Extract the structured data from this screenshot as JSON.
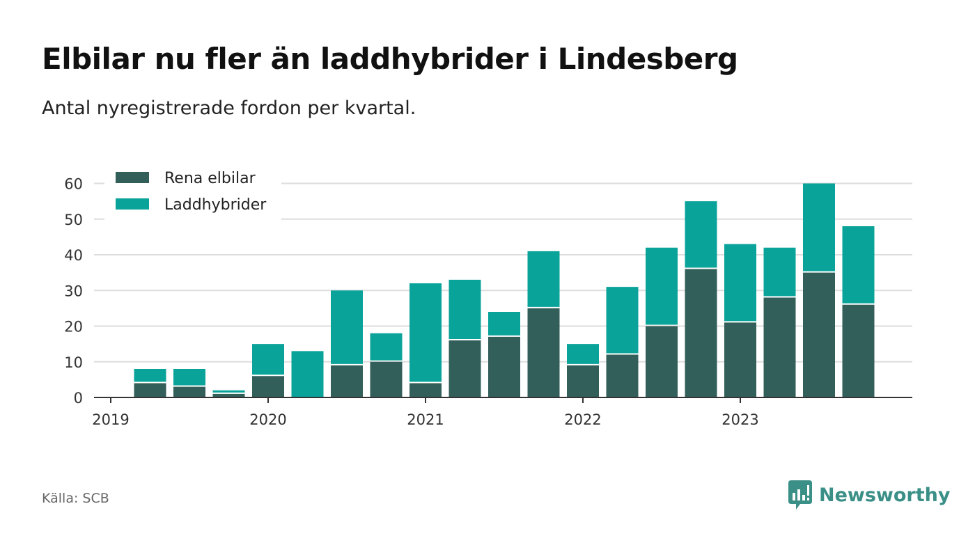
{
  "header": {
    "title": "Elbilar nu fler än laddhybrider i Lindesberg",
    "subtitle": "Antal nyregistrerade fordon per kvartal."
  },
  "footer": {
    "source": "Källa: SCB",
    "brand": "Newsworthy"
  },
  "colors": {
    "elbilar": "#335f5a",
    "laddhybrider": "#0aa39a",
    "grid": "#dddddd",
    "axis": "#333333",
    "brand": "#3a8f86"
  },
  "chart_data": {
    "type": "bar",
    "stacked": true,
    "title": "Elbilar nu fler än laddhybrider i Lindesberg",
    "subtitle": "Antal nyregistrerade fordon per kvartal.",
    "categories": [
      "2019-Q1",
      "2019-Q2",
      "2019-Q3",
      "2019-Q4",
      "2020-Q1",
      "2020-Q2",
      "2020-Q3",
      "2020-Q4",
      "2021-Q1",
      "2021-Q2",
      "2021-Q3",
      "2021-Q4",
      "2022-Q1",
      "2022-Q2",
      "2022-Q3",
      "2022-Q4",
      "2023-Q1",
      "2023-Q2",
      "2023-Q3",
      "2023-Q4"
    ],
    "series": [
      {
        "name": "Rena elbilar",
        "values": [
          0,
          4,
          3,
          1,
          6,
          0,
          9,
          10,
          4,
          16,
          17,
          25,
          9,
          12,
          20,
          36,
          21,
          28,
          35,
          26
        ]
      },
      {
        "name": "Laddhybrider",
        "values": [
          0,
          4,
          5,
          1,
          9,
          13,
          21,
          8,
          28,
          17,
          7,
          16,
          6,
          19,
          22,
          19,
          22,
          14,
          25,
          22
        ]
      }
    ],
    "xticks": [
      "2019",
      "2020",
      "2021",
      "2022",
      "2023"
    ],
    "yticks": [
      0,
      10,
      20,
      30,
      40,
      50,
      60
    ],
    "ylim": [
      0,
      60
    ],
    "xlabel": "",
    "ylabel": "",
    "grid": true,
    "legend": "top-left"
  }
}
